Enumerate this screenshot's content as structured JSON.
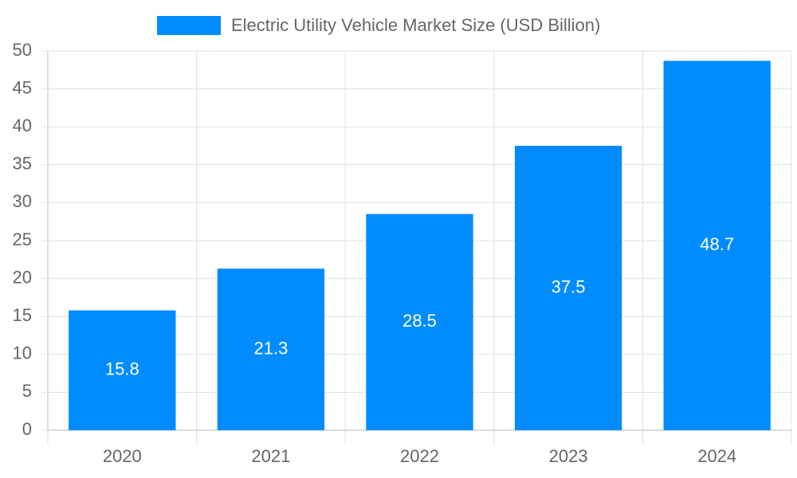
{
  "chart_data": {
    "type": "bar",
    "categories": [
      "2020",
      "2021",
      "2022",
      "2023",
      "2024"
    ],
    "series": [
      {
        "name": "Electric Utility Vehicle Market Size (USD Billion)",
        "color": "#008cff",
        "values": [
          15.8,
          21.3,
          28.5,
          37.5,
          48.7
        ]
      }
    ],
    "ylim": [
      0,
      50
    ],
    "yticks": [
      0,
      5,
      10,
      15,
      20,
      25,
      30,
      35,
      40,
      45,
      50
    ],
    "grid": true,
    "legend": "top"
  }
}
